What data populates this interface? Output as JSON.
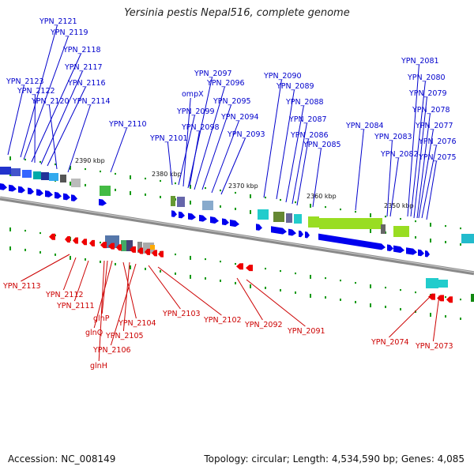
{
  "title": "Yersinia pestis Nepal516, complete genome",
  "footer": {
    "accession": "Accession: NC_008149",
    "topology": "Topology: circular; Length: 4,534,590 bp; Genes: 4,085"
  },
  "colors": {
    "forward_gene": "#0000ee",
    "reverse_gene": "#ee0000",
    "backbone": "#8a8a8a",
    "tick": "#119911",
    "label_forward": "#0000cc",
    "label_reverse": "#cc0000"
  },
  "scale_labels": [
    "2390 kbp",
    "2380 kbp",
    "2370 kbp",
    "2360 kbp",
    "2350 kbp"
  ],
  "forward_labels": [
    "YPN_2121",
    "YPN_2119",
    "YPN_2118",
    "YPN_2117",
    "YPN_2123",
    "YPN_2116",
    "YPN_2122",
    "YPN_2120",
    "YPN_2114",
    "YPN_2110",
    "YPN_2097",
    "YPN_2096",
    "ompX",
    "YPN_2095",
    "YPN_2099",
    "YPN_2094",
    "YPN_2098",
    "YPN_2093",
    "YPN_2101",
    "YPN_2090",
    "YPN_2089",
    "YPN_2088",
    "YPN_2087",
    "YPN_2086",
    "YPN_2085",
    "YPN_2084",
    "YPN_2081",
    "YPN_2080",
    "YPN_2079",
    "YPN_2078",
    "YPN_2077",
    "YPN_2083",
    "YPN_2076",
    "YPN_2082",
    "YPN_2075"
  ],
  "reverse_labels": [
    "YPN_2113",
    "YPN_2112",
    "YPN_2111",
    "glnP",
    "glnQ",
    "YPN_2104",
    "YPN_2105",
    "YPN_2106",
    "glnH",
    "YPN_2103",
    "YPN_2102",
    "YPN_2092",
    "YPN_2091",
    "YPN_2074",
    "YPN_2073"
  ]
}
